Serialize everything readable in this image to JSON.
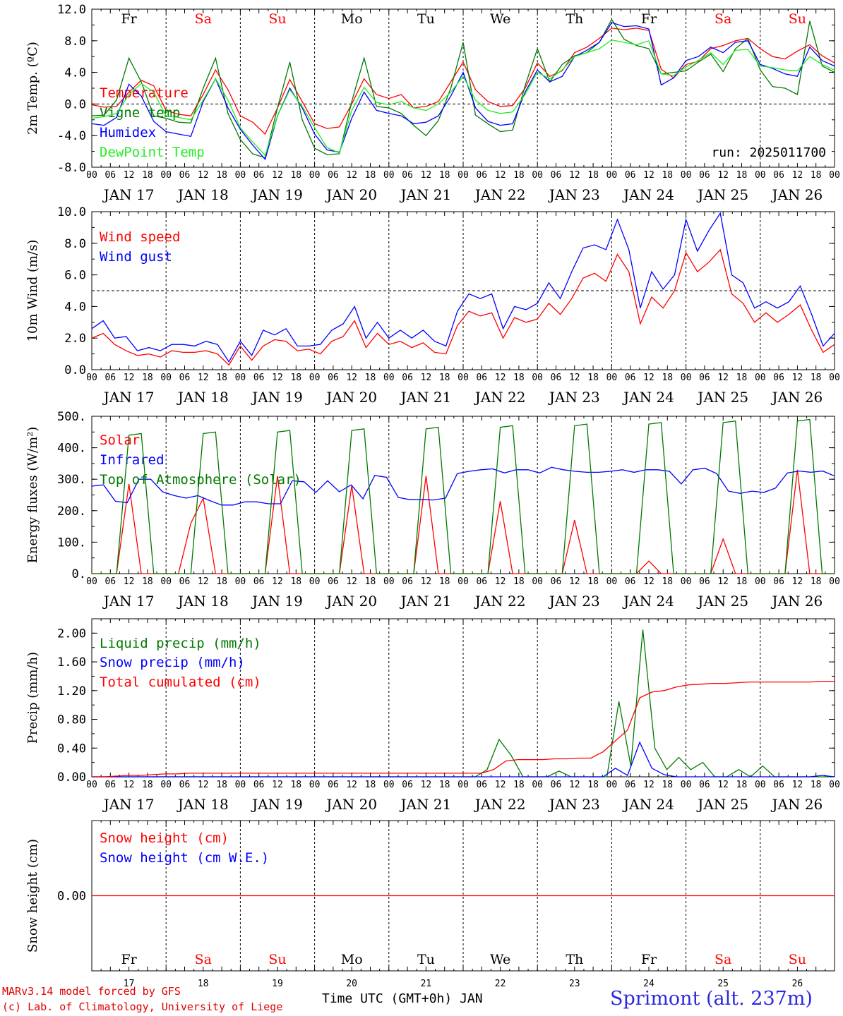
{
  "run_label": "run: 2025011700",
  "days": {
    "names": [
      "Fr",
      "Sa",
      "Su",
      "Mo",
      "Tu",
      "We",
      "Th",
      "Fr",
      "Sa",
      "Su"
    ],
    "weekend": [
      false,
      true,
      true,
      false,
      false,
      false,
      false,
      false,
      true,
      true
    ],
    "dates": [
      "JAN 17",
      "JAN 18",
      "JAN 19",
      "JAN 20",
      "JAN 21",
      "JAN 22",
      "JAN 23",
      "JAN 24",
      "JAN 25",
      "JAN 26"
    ],
    "bottom_numbers": [
      "17",
      "18",
      "19",
      "20",
      "21",
      "22",
      "23",
      "24",
      "25",
      "26"
    ],
    "hour_ticks": [
      "00",
      "06",
      "12",
      "18"
    ],
    "final_tick": "00"
  },
  "colors": {
    "red": "#ff0000",
    "green": "#007a00",
    "blue": "#0000ff",
    "lightgreen": "#22ee22",
    "weekend": "#ff0000",
    "station": "#2a2ae0"
  },
  "footer": {
    "model_line1": "MARv3.14 model forced by GFS",
    "model_line2": "(c) Lab. of Climatology, University of Liege",
    "x_title": "Time UTC (GMT+0h) JAN",
    "station": "Sprimont (alt. 237m)"
  },
  "chart_data": [
    {
      "type": "line",
      "id": "temp",
      "ylabel": "2m Temp. (ºC)",
      "ylim": [
        -8,
        12
      ],
      "yticks": [
        "-8.0",
        "-4.0",
        "0.0",
        "4.0",
        "8.0",
        "12.0"
      ],
      "reference_line": 0,
      "x_unit": "hours since JAN 17 00 UTC (3-hourly)",
      "series": [
        {
          "name": "Temperature",
          "color": "#ff0000",
          "values": [
            -0.1,
            -0.4,
            -0.3,
            1.5,
            3.0,
            2.3,
            -0.8,
            -1.3,
            -1.5,
            1.2,
            4.3,
            1.8,
            -1.5,
            -2.3,
            -3.8,
            -0.5,
            3.1,
            0.3,
            -2.5,
            -3.1,
            -2.9,
            0.0,
            3.2,
            1.2,
            0.7,
            1.2,
            -0.5,
            -0.3,
            0.3,
            2.8,
            5.3,
            1.8,
            0.3,
            -0.3,
            -0.2,
            2.0,
            5.2,
            3.5,
            4.2,
            6.5,
            7.2,
            8.3,
            9.6,
            9.4,
            9.6,
            9.3,
            4.4,
            3.3,
            5.0,
            5.4,
            7.0,
            7.4,
            8.0,
            8.3,
            7.0,
            6.0,
            5.7,
            6.7,
            7.5,
            6.1,
            5.2
          ]
        },
        {
          "name": "Vigne temp",
          "color": "#007a00",
          "values": [
            -1.5,
            -1.4,
            0.5,
            5.8,
            2.8,
            -1.5,
            -1.8,
            -2.3,
            -2.4,
            2.0,
            5.8,
            -1.2,
            -4.5,
            -6.3,
            -6.8,
            -0.5,
            5.3,
            -2.0,
            -5.6,
            -6.4,
            -6.3,
            0.3,
            5.8,
            -0.3,
            -0.5,
            -1.2,
            -2.7,
            -4.0,
            -2.1,
            2.0,
            7.8,
            -1.4,
            -2.5,
            -3.5,
            -3.3,
            2.3,
            7.0,
            2.8,
            5.0,
            6.1,
            6.5,
            7.8,
            10.7,
            8.2,
            7.4,
            7.0,
            3.8,
            4.0,
            4.2,
            5.3,
            6.3,
            4.1,
            7.0,
            8.3,
            4.3,
            2.2,
            2.0,
            1.2,
            10.5,
            4.8,
            4.0
          ]
        },
        {
          "name": "Humidex",
          "color": "#0000ff",
          "values": [
            -2.5,
            -2.7,
            -1.7,
            2.5,
            1.0,
            -2.2,
            -3.5,
            -3.8,
            -4.1,
            0.3,
            3.2,
            -0.5,
            -3.2,
            -5.2,
            -7.0,
            -1.5,
            2.0,
            -0.5,
            -3.8,
            -5.8,
            -6.1,
            -1.8,
            1.5,
            -0.8,
            -1.2,
            -1.5,
            -2.5,
            -2.3,
            -1.5,
            1.0,
            4.0,
            -0.5,
            -2.2,
            -2.7,
            -2.5,
            1.5,
            4.3,
            2.8,
            3.5,
            6.0,
            6.8,
            7.8,
            10.3,
            9.8,
            9.9,
            9.5,
            2.4,
            3.3,
            5.5,
            6.0,
            7.2,
            6.5,
            7.8,
            8.0,
            5.0,
            4.5,
            3.8,
            3.5,
            7.2,
            5.5,
            4.8
          ]
        },
        {
          "name": "DewPoint Temp",
          "color": "#22ee22",
          "values": [
            -1.8,
            -1.6,
            -1.2,
            1.2,
            2.6,
            1.5,
            -1.5,
            -1.7,
            -2.0,
            0.5,
            3.2,
            0.5,
            -3.0,
            -4.8,
            -6.5,
            -1.5,
            1.8,
            -0.3,
            -3.0,
            -5.5,
            -6.2,
            -0.8,
            2.1,
            0.2,
            -0.1,
            0.3,
            -0.5,
            -0.8,
            0.0,
            1.5,
            3.5,
            0.5,
            -0.8,
            -1.2,
            -1.0,
            1.2,
            4.0,
            3.2,
            4.3,
            6.0,
            6.5,
            7.0,
            8.1,
            7.8,
            7.5,
            8.0,
            3.8,
            3.6,
            4.7,
            5.5,
            6.5,
            5.0,
            6.8,
            6.9,
            4.8,
            4.6,
            4.3,
            4.2,
            6.0,
            5.0,
            4.3
          ]
        }
      ]
    },
    {
      "type": "line",
      "id": "wind",
      "ylabel": "10m Wind (m/s)",
      "ylim": [
        0,
        10
      ],
      "yticks": [
        "0.0",
        "2.0",
        "4.0",
        "6.0",
        "8.0",
        "10.0"
      ],
      "reference_line": 5,
      "series": [
        {
          "name": "Wind speed",
          "color": "#ff0000",
          "values": [
            2.0,
            2.3,
            1.6,
            1.2,
            0.9,
            1.0,
            0.8,
            1.2,
            1.1,
            1.1,
            1.2,
            1.0,
            0.3,
            1.5,
            0.6,
            1.5,
            1.9,
            1.8,
            1.2,
            1.3,
            1.0,
            1.8,
            2.1,
            3.1,
            1.4,
            2.3,
            1.6,
            1.8,
            1.4,
            1.7,
            1.1,
            1.0,
            2.8,
            3.7,
            3.4,
            3.6,
            2.0,
            3.3,
            3.0,
            3.2,
            4.2,
            3.5,
            4.5,
            5.8,
            6.1,
            5.6,
            7.3,
            6.2,
            2.9,
            4.6,
            3.9,
            5.0,
            7.4,
            6.2,
            6.8,
            7.6,
            4.8,
            4.2,
            3.0,
            3.6,
            3.0,
            3.5,
            4.1,
            2.5,
            1.1,
            1.6
          ]
        },
        {
          "name": "Wind gust",
          "color": "#0000ff",
          "values": [
            2.6,
            3.1,
            2.0,
            2.1,
            1.2,
            1.4,
            1.2,
            1.6,
            1.6,
            1.5,
            1.8,
            1.6,
            0.5,
            1.8,
            0.9,
            2.5,
            2.2,
            2.6,
            1.5,
            1.5,
            1.6,
            2.5,
            2.9,
            4.0,
            2.0,
            3.0,
            2.0,
            2.5,
            2.0,
            2.5,
            1.8,
            1.5,
            3.7,
            4.8,
            4.5,
            4.8,
            2.6,
            4.0,
            3.8,
            4.2,
            5.5,
            4.5,
            6.2,
            7.7,
            7.9,
            7.6,
            9.5,
            7.6,
            3.9,
            6.2,
            5.1,
            6.0,
            9.5,
            7.5,
            8.8,
            9.9,
            6.0,
            5.5,
            3.9,
            4.3,
            3.9,
            4.3,
            5.3,
            3.5,
            1.5,
            2.3
          ]
        }
      ]
    },
    {
      "type": "line",
      "id": "flux",
      "ylabel": "Energy fluxes (W/m²)",
      "ylim": [
        0,
        500
      ],
      "yticks": [
        "0.",
        "100.",
        "200.",
        "300.",
        "400.",
        "500."
      ],
      "series": [
        {
          "name": "Solar",
          "color": "#ff0000",
          "values": [
            0,
            0,
            0,
            285,
            0,
            0,
            0,
            0,
            160,
            240,
            0,
            0,
            0,
            0,
            0,
            310,
            0,
            0,
            0,
            0,
            0,
            280,
            0,
            0,
            0,
            0,
            0,
            310,
            0,
            0,
            0,
            0,
            0,
            230,
            0,
            0,
            0,
            0,
            0,
            170,
            0,
            0,
            0,
            0,
            0,
            40,
            0,
            0,
            0,
            0,
            0,
            110,
            0,
            0,
            0,
            0,
            0,
            330,
            0,
            0,
            0
          ]
        },
        {
          "name": "Infrared",
          "color": "#0000ff",
          "values": [
            278,
            282,
            230,
            225,
            300,
            300,
            260,
            248,
            240,
            248,
            232,
            218,
            218,
            228,
            228,
            222,
            222,
            295,
            292,
            258,
            295,
            260,
            282,
            238,
            312,
            306,
            242,
            235,
            235,
            234,
            240,
            318,
            325,
            330,
            333,
            320,
            330,
            330,
            320,
            338,
            330,
            325,
            322,
            322,
            325,
            330,
            322,
            330,
            330,
            325,
            285,
            330,
            335,
            318,
            262,
            255,
            262,
            258,
            272,
            320,
            326,
            322,
            326,
            310
          ]
        },
        {
          "name": "Top of Atmosphere (Solar)",
          "color": "#007a00",
          "values": [
            0,
            0,
            0,
            440,
            445,
            0,
            0,
            0,
            0,
            445,
            450,
            0,
            0,
            0,
            0,
            450,
            455,
            0,
            0,
            0,
            0,
            455,
            460,
            0,
            0,
            0,
            0,
            460,
            465,
            0,
            0,
            0,
            0,
            465,
            470,
            0,
            0,
            0,
            0,
            470,
            475,
            0,
            0,
            0,
            0,
            475,
            480,
            0,
            0,
            0,
            0,
            480,
            485,
            0,
            0,
            0,
            0,
            485,
            490,
            0,
            0
          ]
        }
      ]
    },
    {
      "type": "line",
      "id": "precip",
      "ylabel": "Precip (mm/h)",
      "ylim": [
        0,
        2.2
      ],
      "yticks": [
        "0.00",
        "0.40",
        "0.80",
        "1.20",
        "1.60",
        "2.00"
      ],
      "series": [
        {
          "name": "Liquid precip (mm/h)",
          "color": "#007a00",
          "values": [
            0,
            0,
            0,
            0,
            0,
            0,
            0,
            0,
            0,
            0,
            0,
            0,
            0,
            0,
            0,
            0,
            0,
            0,
            0,
            0,
            0,
            0,
            0,
            0,
            0,
            0,
            0,
            0,
            0,
            0,
            0,
            0,
            0,
            0.1,
            0.52,
            0.3,
            0,
            0,
            0,
            0.08,
            0,
            0,
            0,
            0,
            1.05,
            0.15,
            2.05,
            0.4,
            0.1,
            0.27,
            0.1,
            0.2,
            0,
            0,
            0.1,
            0,
            0.15,
            0,
            0,
            0,
            0,
            0,
            0
          ]
        },
        {
          "name": "Snow precip (mm/h)",
          "color": "#0000ff",
          "values": [
            0,
            0,
            0,
            0,
            0,
            0,
            0,
            0,
            0,
            0,
            0,
            0,
            0,
            0,
            0,
            0,
            0,
            0,
            0,
            0,
            0,
            0,
            0,
            0,
            0,
            0,
            0,
            0,
            0,
            0,
            0,
            0,
            0,
            0,
            0,
            0,
            0,
            0,
            0,
            0,
            0,
            0,
            0,
            0.12,
            0.02,
            0.48,
            0.12,
            0.03,
            0,
            0,
            0,
            0,
            0,
            0,
            0,
            0,
            0,
            0,
            0,
            0,
            0.02,
            0
          ]
        },
        {
          "name": "Total cumulated (cm)",
          "color": "#ff0000",
          "values": [
            0,
            0,
            0.01,
            0.02,
            0.02,
            0.03,
            0.04,
            0.04,
            0.05,
            0.05,
            0.05,
            0.05,
            0.05,
            0.05,
            0.05,
            0.05,
            0.05,
            0.05,
            0.05,
            0.05,
            0.05,
            0.05,
            0.05,
            0.05,
            0.05,
            0.05,
            0.05,
            0.05,
            0.05,
            0.05,
            0.05,
            0.05,
            0.05,
            0.1,
            0.22,
            0.24,
            0.24,
            0.24,
            0.25,
            0.25,
            0.26,
            0.26,
            0.35,
            0.5,
            0.65,
            1.1,
            1.18,
            1.2,
            1.25,
            1.28,
            1.29,
            1.3,
            1.3,
            1.31,
            1.32,
            1.32,
            1.32,
            1.32,
            1.32,
            1.32,
            1.33,
            1.33
          ]
        }
      ]
    },
    {
      "type": "line",
      "id": "snow",
      "ylabel": "Snow height (cm)",
      "ylim": [
        -1,
        1
      ],
      "yticks": [
        "0.00"
      ],
      "series": [
        {
          "name": "Snow height (cm)",
          "color": "#ff0000",
          "values": [
            0,
            0
          ]
        },
        {
          "name": "Snow height (cm W.E.)",
          "color": "#0000ff",
          "values": []
        }
      ]
    }
  ]
}
